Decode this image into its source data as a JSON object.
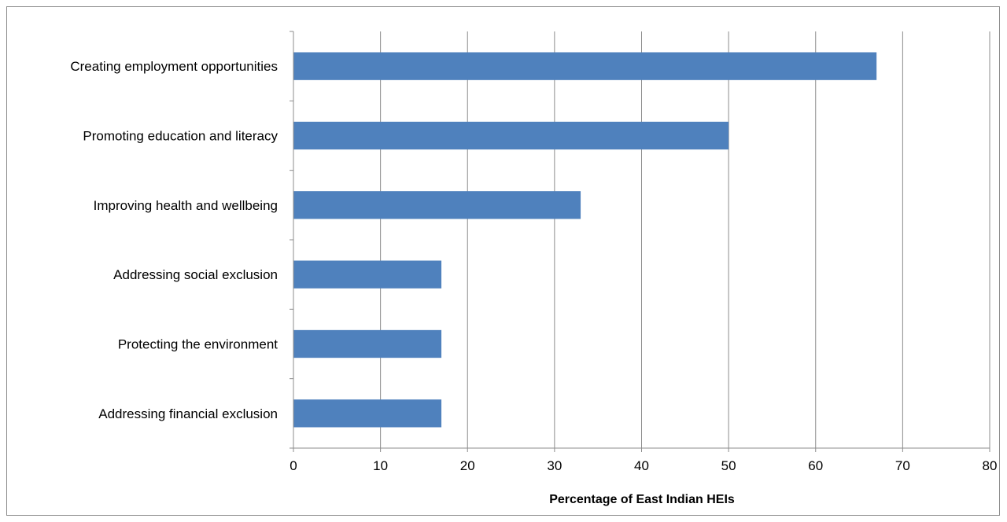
{
  "chart_data": {
    "type": "bar",
    "orientation": "horizontal",
    "categories": [
      "Creating employment opportunities",
      "Promoting education and literacy",
      "Improving health and wellbeing",
      "Addressing social exclusion",
      "Protecting the environment",
      "Addressing financial exclusion"
    ],
    "values": [
      67,
      50,
      33,
      17,
      17,
      17
    ],
    "title": "",
    "xlabel": "Percentage of East Indian HEIs",
    "ylabel": "",
    "xlim": [
      0,
      80
    ],
    "xticks": [
      0,
      10,
      20,
      30,
      40,
      50,
      60,
      70,
      80
    ],
    "grid": "vertical",
    "legend": "none",
    "colors": {
      "bar": "#4f81bd",
      "grid": "#8c8c8c",
      "axis": "#8c8c8c"
    }
  }
}
